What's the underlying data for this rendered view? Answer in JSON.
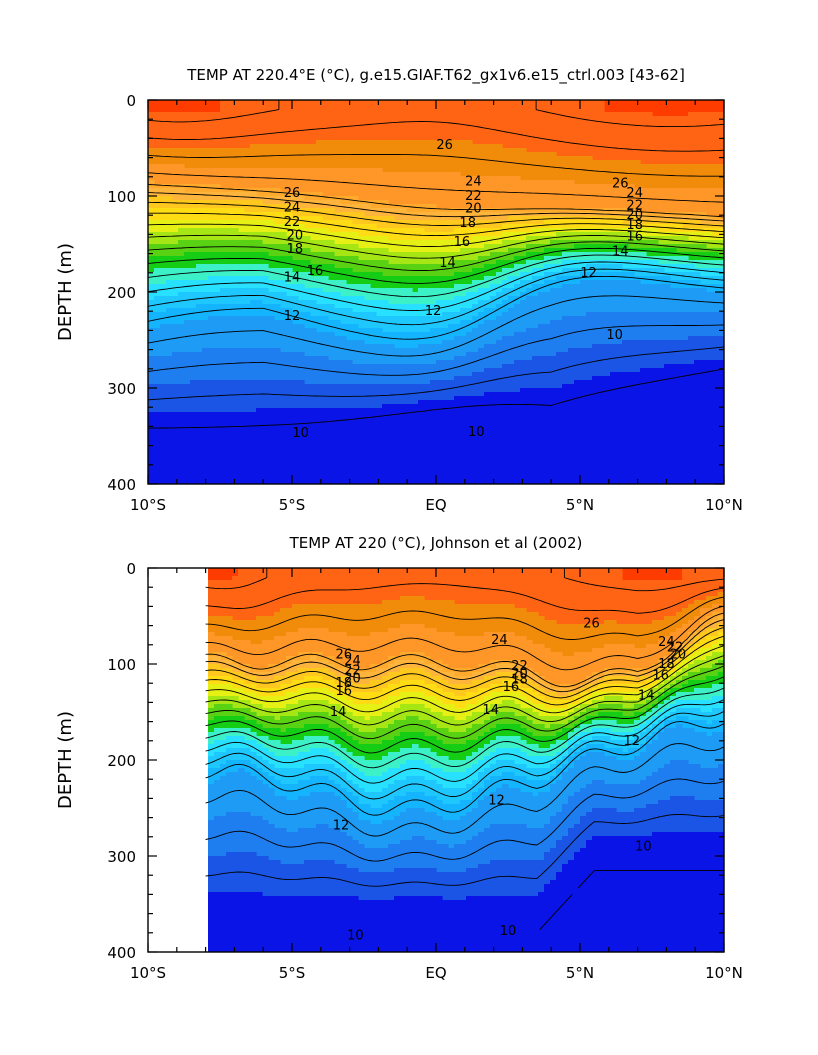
{
  "chart_data": [
    {
      "type": "heatmap",
      "subtype": "filled-contour",
      "title": "TEMP AT 220.4°E (°C), g.e15.GIAF.T62_gx1v6.e15_ctrl.003 [43-62]",
      "xlabel": "",
      "ylabel": "DEPTH (m)",
      "x_ticks": [
        "10°S",
        "5°S",
        "EQ",
        "5°N",
        "10°N"
      ],
      "y_ticks": [
        "0",
        "100",
        "200",
        "300",
        "400"
      ],
      "xlim": [
        -10,
        10
      ],
      "ylim": [
        400,
        0
      ],
      "y_inverted": true,
      "data_x_range": [
        -10,
        10
      ],
      "contour_interval": 1,
      "contour_labels": [
        {
          "text": "26",
          "x": -5.0,
          "y": 97
        },
        {
          "text": "24",
          "x": -5.0,
          "y": 112
        },
        {
          "text": "22",
          "x": -5.0,
          "y": 127
        },
        {
          "text": "20",
          "x": -4.9,
          "y": 141
        },
        {
          "text": "18",
          "x": -4.9,
          "y": 155
        },
        {
          "text": "16",
          "x": -4.2,
          "y": 178
        },
        {
          "text": "14",
          "x": -5.0,
          "y": 185
        },
        {
          "text": "12",
          "x": -5.0,
          "y": 225
        },
        {
          "text": "26",
          "x": 0.3,
          "y": 47
        },
        {
          "text": "24",
          "x": 1.3,
          "y": 85
        },
        {
          "text": "22",
          "x": 1.3,
          "y": 100
        },
        {
          "text": "20",
          "x": 1.3,
          "y": 113
        },
        {
          "text": "18",
          "x": 1.1,
          "y": 128
        },
        {
          "text": "16",
          "x": 0.9,
          "y": 148
        },
        {
          "text": "14",
          "x": 0.4,
          "y": 170
        },
        {
          "text": "12",
          "x": -0.1,
          "y": 220
        },
        {
          "text": "26",
          "x": 6.4,
          "y": 87
        },
        {
          "text": "24",
          "x": 6.9,
          "y": 97
        },
        {
          "text": "22",
          "x": 6.9,
          "y": 110
        },
        {
          "text": "20",
          "x": 6.9,
          "y": 120
        },
        {
          "text": "18",
          "x": 6.9,
          "y": 130
        },
        {
          "text": "16",
          "x": 6.9,
          "y": 142
        },
        {
          "text": "14",
          "x": 6.4,
          "y": 158
        },
        {
          "text": "12",
          "x": 5.3,
          "y": 180
        },
        {
          "text": "10",
          "x": 6.2,
          "y": 245
        },
        {
          "text": "10",
          "x": -4.7,
          "y": 347
        },
        {
          "text": "10",
          "x": 1.4,
          "y": 346
        }
      ]
    },
    {
      "type": "heatmap",
      "subtype": "filled-contour",
      "title": "TEMP AT 220 (°C), Johnson et al (2002)",
      "xlabel": "",
      "ylabel": "DEPTH (m)",
      "x_ticks": [
        "10°S",
        "5°S",
        "EQ",
        "5°N",
        "10°N"
      ],
      "y_ticks": [
        "0",
        "100",
        "200",
        "300",
        "400"
      ],
      "xlim": [
        -10,
        10
      ],
      "ylim": [
        400,
        0
      ],
      "y_inverted": true,
      "data_x_range": [
        -8,
        10
      ],
      "contour_interval": 1,
      "contour_labels": [
        {
          "text": "26",
          "x": -3.2,
          "y": 90
        },
        {
          "text": "24",
          "x": -2.9,
          "y": 97
        },
        {
          "text": "22",
          "x": -2.9,
          "y": 107
        },
        {
          "text": "20",
          "x": -2.9,
          "y": 115
        },
        {
          "text": "18",
          "x": -3.2,
          "y": 120
        },
        {
          "text": "16",
          "x": -3.2,
          "y": 128
        },
        {
          "text": "14",
          "x": -3.4,
          "y": 150
        },
        {
          "text": "24",
          "x": 2.2,
          "y": 75
        },
        {
          "text": "22",
          "x": 2.9,
          "y": 102
        },
        {
          "text": "20",
          "x": 2.9,
          "y": 110
        },
        {
          "text": "18",
          "x": 2.9,
          "y": 116
        },
        {
          "text": "16",
          "x": 2.6,
          "y": 124
        },
        {
          "text": "14",
          "x": 1.9,
          "y": 148
        },
        {
          "text": "26",
          "x": 5.4,
          "y": 58
        },
        {
          "text": "24",
          "x": 8.0,
          "y": 77
        },
        {
          "text": "22",
          "x": 8.3,
          "y": 83
        },
        {
          "text": "20",
          "x": 8.4,
          "y": 90
        },
        {
          "text": "18",
          "x": 8.0,
          "y": 100
        },
        {
          "text": "16",
          "x": 7.8,
          "y": 112
        },
        {
          "text": "14",
          "x": 7.3,
          "y": 133
        },
        {
          "text": "12",
          "x": 6.8,
          "y": 180
        },
        {
          "text": "12",
          "x": -3.3,
          "y": 268
        },
        {
          "text": "12",
          "x": 2.1,
          "y": 242
        },
        {
          "text": "10",
          "x": -2.8,
          "y": 383
        },
        {
          "text": "10",
          "x": 2.5,
          "y": 378
        },
        {
          "text": "10",
          "x": 7.2,
          "y": 290
        }
      ]
    }
  ]
}
